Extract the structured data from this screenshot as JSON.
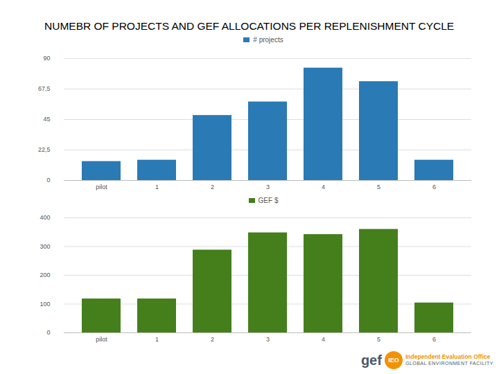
{
  "title": "NUMEBR OF PROJECTS AND GEF ALLOCATIONS PER REPLENISHMENT CYCLE",
  "chart_data": [
    {
      "type": "bar",
      "categories": [
        "pilot",
        "1",
        "2",
        "3",
        "4",
        "5",
        "6"
      ],
      "series": [
        {
          "name": "# projects",
          "color": "#2a7ab5",
          "values": [
            14,
            15,
            48,
            58,
            83,
            73,
            15
          ]
        }
      ],
      "ylim": [
        0,
        90
      ],
      "yticks": [
        0,
        {
          "value": 22.5,
          "label": "22,5"
        },
        45,
        {
          "value": 67.5,
          "label": "67,5"
        },
        90
      ],
      "grid": true,
      "legend": "top"
    },
    {
      "type": "bar",
      "categories": [
        "pilot",
        "1",
        "2",
        "3",
        "4",
        "5",
        "6"
      ],
      "series": [
        {
          "name": "GEF $",
          "color": "#447f1c",
          "values": [
            118,
            118,
            288,
            348,
            342,
            360,
            104
          ]
        }
      ],
      "ylim": [
        0,
        400
      ],
      "yticks": [
        0,
        100,
        200,
        300,
        400
      ],
      "grid": true,
      "legend": "top"
    }
  ],
  "logo": {
    "brand": "gef",
    "badge": "IEO",
    "line1": "Independent Evaluation Office",
    "line2": "GLOBAL ENVIRONMENT FACILITY"
  }
}
